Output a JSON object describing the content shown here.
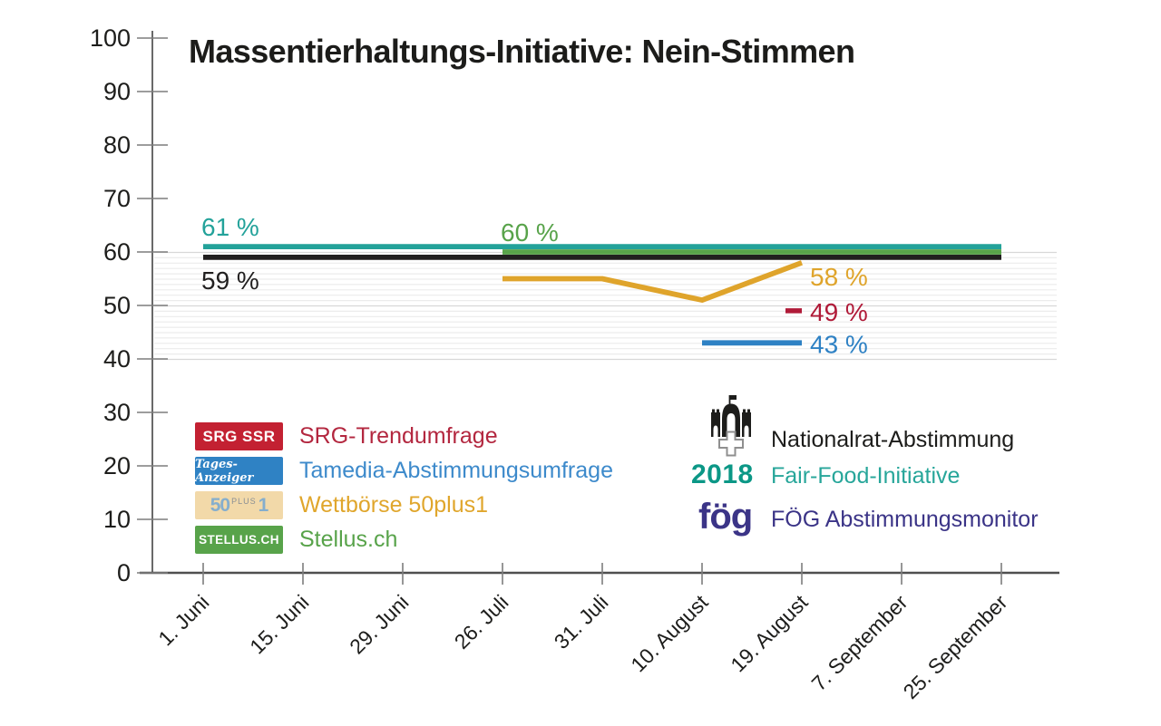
{
  "title": "Massentierhaltungs-Initiative: Nein-Stimmen",
  "chart_data": {
    "type": "line",
    "title": "Massentierhaltungs-Initiative: Nein-Stimmen",
    "categories": [
      "1. Juni",
      "15. Juni",
      "29. Juni",
      "26. Juli",
      "31. Juli",
      "10. August",
      "19. August",
      "7. September",
      "25. September"
    ],
    "y_axis": {
      "min": 0,
      "max": 100,
      "tick_step": 10
    },
    "y_ticks": [
      0,
      10,
      20,
      30,
      40,
      50,
      60,
      70,
      80,
      90,
      100
    ],
    "grid": {
      "minor_band_min": 40,
      "minor_band_max": 60,
      "minor_step": 1
    },
    "legend_position": "inside-bottom",
    "series": [
      {
        "name": "Fair-Food-Initiative 2018",
        "color": "#23a29a",
        "x": [
          "1. Juni",
          "25. September"
        ],
        "values": [
          61,
          61
        ],
        "label": {
          "text": "61 %",
          "position": "start-above"
        }
      },
      {
        "name": "Nationalrat-Abstimmung",
        "color": "#211f1f",
        "x": [
          "1. Juni",
          "25. September"
        ],
        "values": [
          59,
          59
        ],
        "label": {
          "text": "59 %",
          "position": "start-below"
        }
      },
      {
        "name": "Stellus.ch",
        "color": "#58a34a",
        "x": [
          "26. Juli",
          "25. September"
        ],
        "values": [
          60,
          60
        ],
        "label": {
          "text": "60 %",
          "position": "start-above"
        }
      },
      {
        "name": "Wettbörse 50plus1",
        "color": "#dfa42b",
        "x": [
          "26. Juli",
          "31. Juli",
          "10. August",
          "19. August"
        ],
        "values": [
          55,
          55,
          51,
          58
        ],
        "label": {
          "text": "58 %",
          "position": "end",
          "dy": 16
        }
      },
      {
        "name": "SRG-Trendumfrage",
        "color": "#b01a38",
        "marker": "dash",
        "x": [
          "19. August"
        ],
        "values": [
          49
        ],
        "label": {
          "text": "49 %",
          "position": "end",
          "dy": 2
        }
      },
      {
        "name": "Tamedia-Abstimmungsumfrage",
        "color": "#2e81c4",
        "x": [
          "10. August",
          "19. August"
        ],
        "values": [
          43,
          43
        ],
        "label": {
          "text": "43 %",
          "position": "end",
          "dy": 2
        }
      }
    ]
  },
  "legend": {
    "left": [
      {
        "badge": {
          "text": "SRG SSR",
          "bg": "#c32132",
          "fg": "#ffffff"
        },
        "label": "SRG-Trendumfrage",
        "color": "#b3273f"
      },
      {
        "badge": {
          "text": "Tages-Anzeiger",
          "bg": "#2f82c4",
          "fg": "#ffffff"
        },
        "label": "Tamedia-Abstimmungsumfrage",
        "color": "#3d8acb"
      },
      {
        "badge": {
          "parts": [
            "50",
            "plus",
            "1"
          ],
          "bg": "#f2d9a9",
          "fg": "#85aecd",
          "fg2": "#8a8f94"
        },
        "label": "Wettbörse 50plus1",
        "color": "#e0a62c"
      },
      {
        "badge": {
          "text": "STELLUS.CH",
          "bg": "#58a34a",
          "fg": "#ffffff"
        },
        "label": "Stellus.ch",
        "color": "#58a34a"
      }
    ],
    "right": [
      {
        "icon": "parliament-icon",
        "label": "Nationalrat-Abstimmung",
        "color": "#1d1d1b"
      },
      {
        "badge_text": "2018",
        "badge_color": "#0b9786",
        "label": "Fair-Food-Initiative",
        "color": "#27a69a"
      },
      {
        "badge_text": "fög",
        "badge_color": "#3b3487",
        "label": "FÖG Abstimmungsmonitor",
        "color": "#3b3487"
      }
    ]
  }
}
